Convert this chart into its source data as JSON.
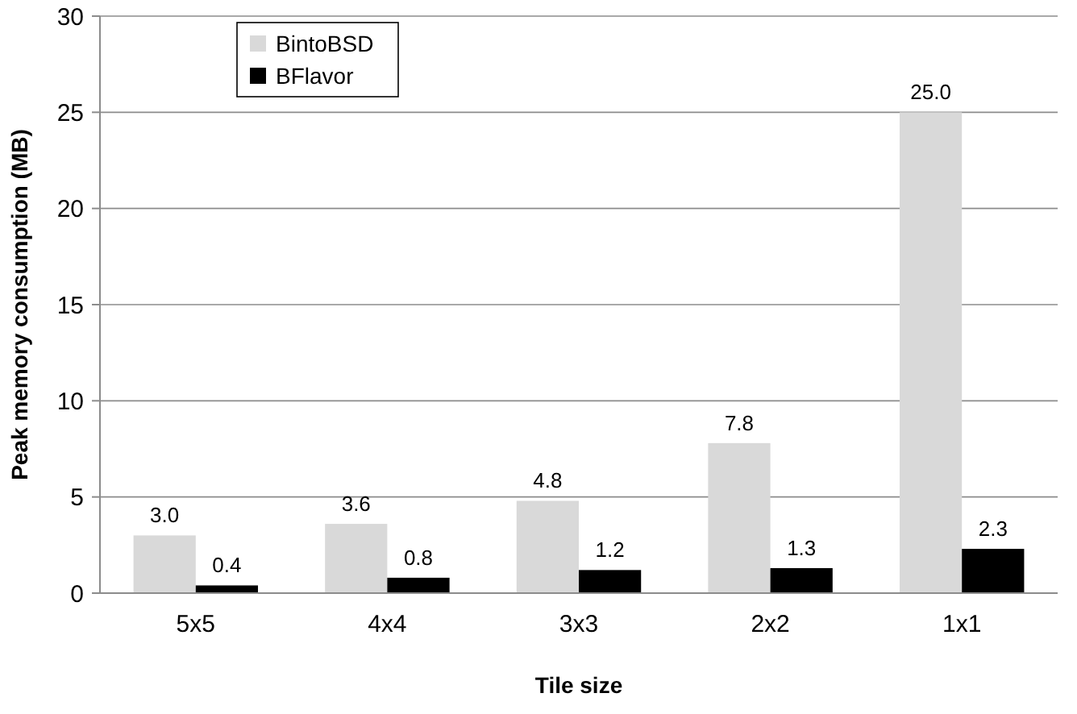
{
  "chart_data": {
    "type": "bar",
    "xlabel": "Tile size",
    "ylabel": "Peak memory consumption (MB)",
    "categories": [
      "5x5",
      "4x4",
      "3x3",
      "2x2",
      "1x1"
    ],
    "series": [
      {
        "name": "BintoBSD",
        "color": "#d9d9d9",
        "values": [
          3.0,
          3.6,
          4.8,
          7.8,
          25.0
        ]
      },
      {
        "name": "BFlavor",
        "color": "#000000",
        "values": [
          0.4,
          0.8,
          1.2,
          1.3,
          2.3
        ]
      }
    ],
    "value_labels": [
      [
        "3.0",
        "3.6",
        "4.8",
        "7.8",
        "25.0"
      ],
      [
        "0.4",
        "0.8",
        "1.2",
        "1.3",
        "2.3"
      ]
    ],
    "ylim": [
      0,
      30
    ],
    "yticks": [
      0,
      5,
      10,
      15,
      20,
      25,
      30
    ],
    "grid": "y",
    "legend": "top left"
  }
}
